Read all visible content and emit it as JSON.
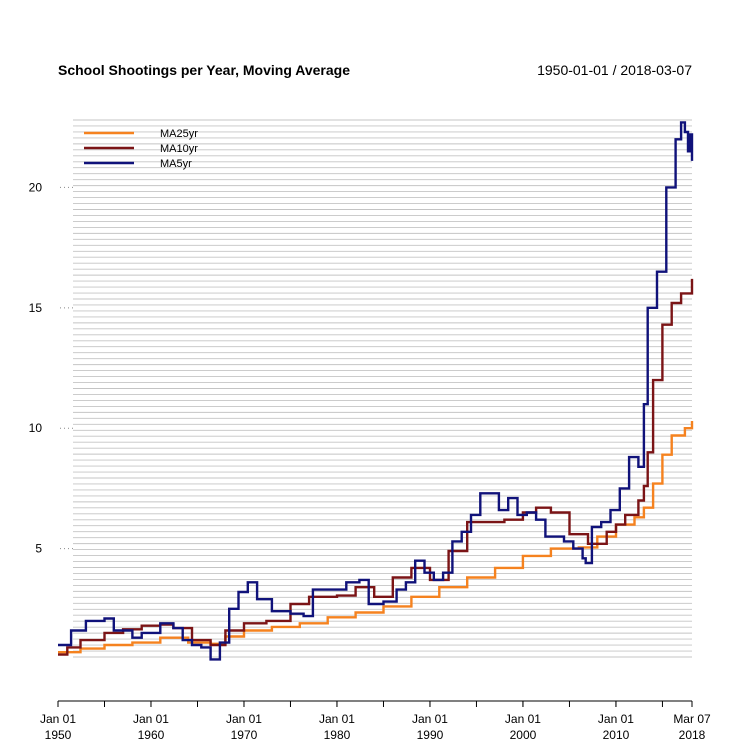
{
  "chart_data": {
    "type": "line",
    "title": "School Shootings per Year, Moving Average",
    "date_range": "1950-01-01 / 2018-03-07",
    "xlabel": "",
    "ylabel": "",
    "x_ticks": [
      {
        "date": "1950-01-01",
        "line1": "Jan 01",
        "line2": "1950"
      },
      {
        "date": "1960-01-01",
        "line1": "Jan 01",
        "line2": "1960"
      },
      {
        "date": "1970-01-01",
        "line1": "Jan 01",
        "line2": "1970"
      },
      {
        "date": "1980-01-01",
        "line1": "Jan 01",
        "line2": "1980"
      },
      {
        "date": "1990-01-01",
        "line1": "Jan 01",
        "line2": "1990"
      },
      {
        "date": "2000-01-01",
        "line1": "Jan 01",
        "line2": "2000"
      },
      {
        "date": "2010-01-01",
        "line1": "Jan 01",
        "line2": "2010"
      },
      {
        "date": "2018-03-07",
        "line1": "Mar 07",
        "line2": "2018"
      }
    ],
    "y_ticks": [
      5,
      10,
      15,
      20
    ],
    "ylim": [
      0.5,
      22.8
    ],
    "grid": true,
    "legend_position": "top-left",
    "series": [
      {
        "name": "MA25yr",
        "color": "#f5821f",
        "points": [
          [
            "1950-01-01",
            0.7
          ],
          [
            "1952-06-01",
            0.85
          ],
          [
            "1955-01-01",
            1.0
          ],
          [
            "1958-01-01",
            1.1
          ],
          [
            "1961-01-01",
            1.3
          ],
          [
            "1964-01-01",
            1.1
          ],
          [
            "1966-06-01",
            1.05
          ],
          [
            "1968-01-01",
            1.35
          ],
          [
            "1970-01-01",
            1.6
          ],
          [
            "1973-01-01",
            1.75
          ],
          [
            "1976-01-01",
            1.9
          ],
          [
            "1979-01-01",
            2.15
          ],
          [
            "1982-01-01",
            2.35
          ],
          [
            "1985-01-01",
            2.6
          ],
          [
            "1988-01-01",
            3.0
          ],
          [
            "1991-01-01",
            3.4
          ],
          [
            "1994-01-01",
            3.8
          ],
          [
            "1997-01-01",
            4.2
          ],
          [
            "2000-01-01",
            4.7
          ],
          [
            "2003-01-01",
            5.0
          ],
          [
            "2006-01-01",
            5.05
          ],
          [
            "2008-01-01",
            5.5
          ],
          [
            "2010-01-01",
            6.0
          ],
          [
            "2012-01-01",
            6.3
          ],
          [
            "2013-01-01",
            6.7
          ],
          [
            "2014-01-01",
            7.7
          ],
          [
            "2015-01-01",
            8.9
          ],
          [
            "2016-01-01",
            9.7
          ],
          [
            "2017-06-01",
            10.0
          ],
          [
            "2018-03-07",
            10.3
          ]
        ]
      },
      {
        "name": "MA10yr",
        "color": "#7b1416",
        "points": [
          [
            "1950-01-01",
            0.6
          ],
          [
            "1951-01-01",
            0.9
          ],
          [
            "1952-06-01",
            1.2
          ],
          [
            "1955-01-01",
            1.5
          ],
          [
            "1957-01-01",
            1.65
          ],
          [
            "1959-01-01",
            1.8
          ],
          [
            "1961-01-01",
            1.85
          ],
          [
            "1962-06-01",
            1.7
          ],
          [
            "1964-06-01",
            1.2
          ],
          [
            "1966-06-01",
            1.0
          ],
          [
            "1968-01-01",
            1.6
          ],
          [
            "1970-01-01",
            1.9
          ],
          [
            "1972-06-01",
            2.0
          ],
          [
            "1975-01-01",
            2.7
          ],
          [
            "1977-01-01",
            3.0
          ],
          [
            "1980-01-01",
            3.05
          ],
          [
            "1982-01-01",
            3.4
          ],
          [
            "1984-01-01",
            3.0
          ],
          [
            "1986-01-01",
            3.8
          ],
          [
            "1988-01-01",
            4.2
          ],
          [
            "1990-01-01",
            3.7
          ],
          [
            "1992-01-01",
            4.9
          ],
          [
            "1994-01-01",
            6.1
          ],
          [
            "1996-01-01",
            6.1
          ],
          [
            "1998-01-01",
            6.2
          ],
          [
            "2000-01-01",
            6.5
          ],
          [
            "2001-06-01",
            6.7
          ],
          [
            "2003-01-01",
            6.5
          ],
          [
            "2005-01-01",
            5.6
          ],
          [
            "2007-01-01",
            5.2
          ],
          [
            "2009-01-01",
            5.7
          ],
          [
            "2010-01-01",
            6.0
          ],
          [
            "2011-01-01",
            6.4
          ],
          [
            "2012-06-01",
            7.0
          ],
          [
            "2013-01-01",
            7.6
          ],
          [
            "2013-06-01",
            9.0
          ],
          [
            "2014-01-01",
            12.0
          ],
          [
            "2015-01-01",
            14.3
          ],
          [
            "2016-01-01",
            15.2
          ],
          [
            "2017-01-01",
            15.6
          ],
          [
            "2018-03-07",
            16.2
          ]
        ]
      },
      {
        "name": "MA5yr",
        "color": "#10127a",
        "points": [
          [
            "1950-01-01",
            1.0
          ],
          [
            "1951-06-01",
            1.6
          ],
          [
            "1953-01-01",
            2.0
          ],
          [
            "1955-01-01",
            2.1
          ],
          [
            "1956-01-01",
            1.6
          ],
          [
            "1958-01-01",
            1.3
          ],
          [
            "1959-01-01",
            1.5
          ],
          [
            "1961-01-01",
            1.9
          ],
          [
            "1962-06-01",
            1.7
          ],
          [
            "1963-06-01",
            1.2
          ],
          [
            "1964-06-01",
            1.0
          ],
          [
            "1965-06-01",
            0.9
          ],
          [
            "1966-06-01",
            0.4
          ],
          [
            "1967-06-01",
            1.1
          ],
          [
            "1968-06-01",
            2.5
          ],
          [
            "1969-06-01",
            3.2
          ],
          [
            "1970-06-01",
            3.6
          ],
          [
            "1971-06-01",
            2.9
          ],
          [
            "1973-01-01",
            2.4
          ],
          [
            "1975-01-01",
            2.3
          ],
          [
            "1976-06-01",
            2.2
          ],
          [
            "1977-06-01",
            3.3
          ],
          [
            "1979-01-01",
            3.3
          ],
          [
            "1981-01-01",
            3.6
          ],
          [
            "1982-06-01",
            3.7
          ],
          [
            "1983-06-01",
            2.7
          ],
          [
            "1985-01-01",
            2.8
          ],
          [
            "1986-06-01",
            3.3
          ],
          [
            "1987-06-01",
            3.6
          ],
          [
            "1988-06-01",
            4.5
          ],
          [
            "1989-06-01",
            4.0
          ],
          [
            "1990-06-01",
            3.7
          ],
          [
            "1991-06-01",
            4.0
          ],
          [
            "1992-06-01",
            5.3
          ],
          [
            "1993-06-01",
            5.7
          ],
          [
            "1994-06-01",
            6.4
          ],
          [
            "1995-06-01",
            7.3
          ],
          [
            "1996-06-01",
            7.3
          ],
          [
            "1997-06-01",
            6.6
          ],
          [
            "1998-06-01",
            7.1
          ],
          [
            "1999-06-01",
            6.4
          ],
          [
            "2000-06-01",
            6.5
          ],
          [
            "2001-06-01",
            6.2
          ],
          [
            "2002-06-01",
            5.5
          ],
          [
            "2003-06-01",
            5.5
          ],
          [
            "2004-06-01",
            5.3
          ],
          [
            "2005-06-01",
            5.0
          ],
          [
            "2006-06-01",
            4.6
          ],
          [
            "2006-10-01",
            4.4
          ],
          [
            "2007-06-01",
            5.9
          ],
          [
            "2008-06-01",
            6.1
          ],
          [
            "2009-06-01",
            6.6
          ],
          [
            "2010-06-01",
            7.5
          ],
          [
            "2011-06-01",
            8.8
          ],
          [
            "2012-06-01",
            8.4
          ],
          [
            "2013-01-01",
            11.0
          ],
          [
            "2013-06-01",
            15.0
          ],
          [
            "2014-06-01",
            16.5
          ],
          [
            "2015-06-01",
            20.0
          ],
          [
            "2016-06-01",
            22.0
          ],
          [
            "2017-01-01",
            22.7
          ],
          [
            "2017-06-01",
            22.3
          ],
          [
            "2017-10-01",
            21.5
          ],
          [
            "2018-01-01",
            22.2
          ],
          [
            "2018-03-07",
            21.1
          ]
        ]
      }
    ]
  }
}
